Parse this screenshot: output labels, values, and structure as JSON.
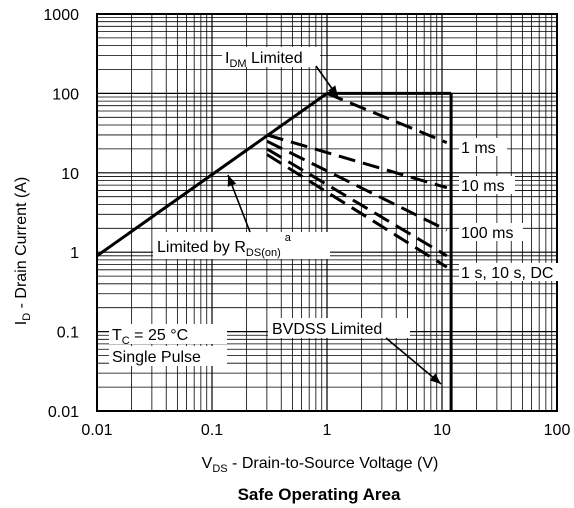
{
  "chart_data": {
    "type": "line",
    "title": "Safe Operating Area",
    "xlabel": {
      "main": "V",
      "sub": "DS",
      "rest": " - Drain-to-Source Voltage (V)"
    },
    "ylabel": {
      "main": "I",
      "sub": "D",
      "rest": " - Drain Current (A)"
    },
    "xscale": "log",
    "yscale": "log",
    "xlim": [
      0.01,
      100
    ],
    "ylim": [
      0.01,
      1000
    ],
    "grid": true,
    "x_ticks": [
      "0.01",
      "0.1",
      "1",
      "10",
      "100"
    ],
    "y_ticks": [
      "0.01",
      "0.1",
      "1",
      "10",
      "100",
      "1000"
    ],
    "series": [
      {
        "name": "Limited by RDS(on)",
        "style": "solid",
        "points": [
          [
            0.01,
            0.9
          ],
          [
            1.0,
            100
          ]
        ]
      },
      {
        "name": "IDM Limited",
        "style": "solid",
        "points": [
          [
            1.0,
            100
          ],
          [
            12,
            100
          ]
        ]
      },
      {
        "name": "BVDSS Limited",
        "style": "solid",
        "points": [
          [
            12,
            0.01
          ],
          [
            12,
            100
          ]
        ]
      },
      {
        "name": "1 ms",
        "style": "dashed",
        "points": [
          [
            1.0,
            100
          ],
          [
            11,
            24
          ]
        ]
      },
      {
        "name": "10 ms",
        "style": "dashed",
        "points": [
          [
            0.3,
            30
          ],
          [
            11,
            6.5
          ]
        ]
      },
      {
        "name": "100 ms",
        "style": "dashed",
        "points": [
          [
            0.3,
            25
          ],
          [
            11,
            1.9
          ]
        ]
      },
      {
        "name": "1 s",
        "style": "dashed",
        "points": [
          [
            0.3,
            20
          ],
          [
            11,
            0.9
          ]
        ]
      },
      {
        "name": "10 s, DC",
        "style": "dashed",
        "points": [
          [
            0.3,
            17
          ],
          [
            11,
            0.65
          ]
        ]
      }
    ],
    "annotations": {
      "idm": {
        "main": "I",
        "sub": "DM",
        "rest": " Limited"
      },
      "rds": {
        "main": "Limited by R",
        "sub": "DS(on)",
        "sup": "a"
      },
      "bvdss": "BVDSS Limited",
      "tc": {
        "main": "T",
        "sub": "C",
        "rest": " = 25 °C"
      },
      "pulse": "Single Pulse",
      "t1ms": "1 ms",
      "t10ms": "10 ms",
      "t100ms": "100 ms",
      "t1s": "1 s, 10 s, DC"
    }
  }
}
